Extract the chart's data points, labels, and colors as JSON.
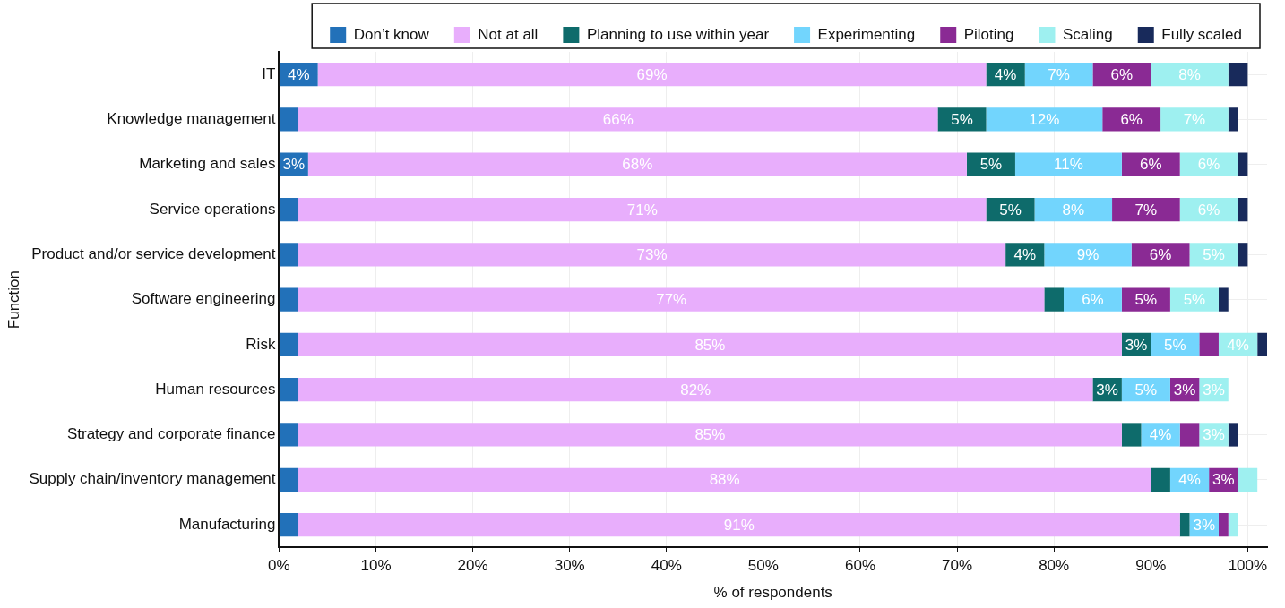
{
  "chart_data": {
    "type": "bar",
    "orientation": "horizontal",
    "stacked": true,
    "xlabel": "% of respondents",
    "ylabel": "Function",
    "categories": [
      "IT",
      "Knowledge management",
      "Marketing and sales",
      "Service operations",
      "Product and/or service development",
      "Software engineering",
      "Risk",
      "Human resources",
      "Strategy and corporate finance",
      "Supply chain/inventory management",
      "Manufacturing"
    ],
    "series": [
      {
        "name": "Don’t know",
        "color": "#2271b9",
        "values": [
          4,
          2,
          3,
          2,
          2,
          2,
          2,
          2,
          2,
          2,
          2
        ],
        "value_labels": [
          "4%",
          null,
          "3%",
          null,
          null,
          null,
          null,
          null,
          null,
          null,
          null
        ]
      },
      {
        "name": "Not at all",
        "color": "#e8aefc",
        "values": [
          69,
          66,
          68,
          71,
          73,
          77,
          85,
          82,
          85,
          88,
          91
        ],
        "value_labels": [
          "69%",
          "66%",
          "68%",
          "71%",
          "73%",
          "77%",
          "85%",
          "82%",
          "85%",
          "88%",
          "91%"
        ]
      },
      {
        "name": "Planning to use within year",
        "color": "#0e6b6b",
        "values": [
          4,
          5,
          5,
          5,
          4,
          2,
          3,
          3,
          2,
          2,
          1
        ],
        "value_labels": [
          "4%",
          "5%",
          "5%",
          "5%",
          "4%",
          null,
          "3%",
          "3%",
          null,
          null,
          null
        ]
      },
      {
        "name": "Experimenting",
        "color": "#72d5fd",
        "values": [
          7,
          12,
          11,
          8,
          9,
          6,
          5,
          5,
          4,
          4,
          3
        ],
        "value_labels": [
          "7%",
          "12%",
          "11%",
          "8%",
          "9%",
          "6%",
          "5%",
          "5%",
          "4%",
          "4%",
          "3%"
        ]
      },
      {
        "name": "Piloting",
        "color": "#8a2a94",
        "values": [
          6,
          6,
          6,
          7,
          6,
          5,
          2,
          3,
          2,
          3,
          1
        ],
        "value_labels": [
          "6%",
          "6%",
          "6%",
          "7%",
          "6%",
          "5%",
          null,
          "3%",
          null,
          "3%",
          null
        ]
      },
      {
        "name": "Scaling",
        "color": "#9ef0f0",
        "values": [
          8,
          7,
          6,
          6,
          5,
          5,
          4,
          3,
          3,
          2,
          1
        ],
        "value_labels": [
          "8%",
          "7%",
          "6%",
          "6%",
          "5%",
          "5%",
          "4%",
          "3%",
          "3%",
          null,
          null
        ]
      },
      {
        "name": "Fully scaled",
        "color": "#182a5b",
        "values": [
          2,
          1,
          1,
          1,
          1,
          1,
          1,
          null,
          1,
          null,
          null
        ],
        "value_labels": [
          null,
          null,
          null,
          null,
          null,
          null,
          null,
          null,
          null,
          null,
          null
        ]
      }
    ],
    "xlim": [
      0,
      102
    ],
    "xticks": [
      {
        "value": 0,
        "label": "0%"
      },
      {
        "value": 10,
        "label": "10%"
      },
      {
        "value": 20,
        "label": "20%"
      },
      {
        "value": 30,
        "label": "30%"
      },
      {
        "value": 40,
        "label": "40%"
      },
      {
        "value": 50,
        "label": "50%"
      },
      {
        "value": 60,
        "label": "60%"
      },
      {
        "value": 70,
        "label": "70%"
      },
      {
        "value": 80,
        "label": "80%"
      },
      {
        "value": 90,
        "label": "90%"
      },
      {
        "value": 100,
        "label": "100%"
      }
    ],
    "grid": true,
    "legend": "top"
  }
}
